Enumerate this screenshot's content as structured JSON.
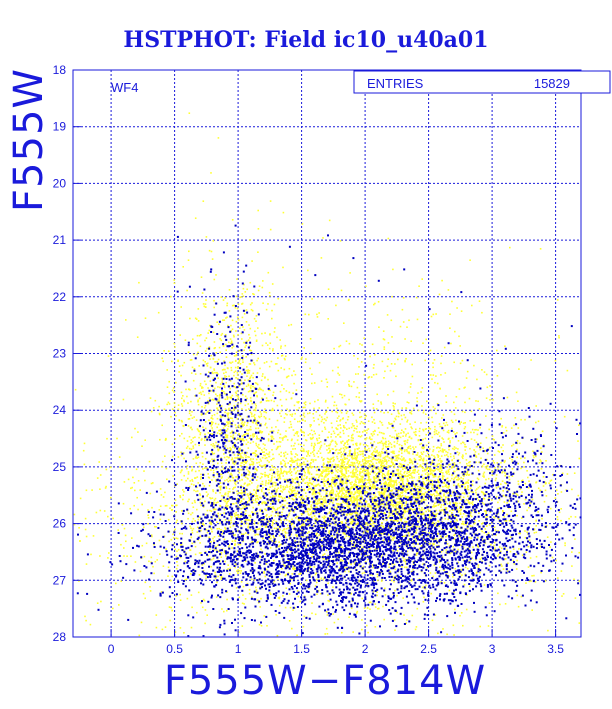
{
  "chart_data": {
    "type": "scatter",
    "title": "HSTPHOT: Field ic10_u40a01",
    "xlabel": "F555W−F814W",
    "ylabel": "F555W",
    "field_label": "WF4",
    "stats_box": {
      "label": "ENTRIES",
      "value": "15829"
    },
    "xlim": [
      -0.3,
      3.7
    ],
    "ylim": [
      18,
      28
    ],
    "y_inverted": true,
    "grid": true,
    "x_ticks": [
      "0",
      "0.5",
      "1",
      "1.5",
      "2",
      "2.5",
      "3",
      "3.5"
    ],
    "y_ticks": [
      "18",
      "19",
      "20",
      "21",
      "22",
      "23",
      "24",
      "25",
      "26",
      "27",
      "28"
    ],
    "series": [
      {
        "color": "#ffff33",
        "points": [
          [
            0.62,
            23.1
          ],
          [
            0.68,
            22.2
          ],
          [
            0.55,
            24.4
          ],
          [
            0.75,
            22.9
          ],
          [
            0.82,
            21.6
          ],
          [
            0.9,
            23.5
          ],
          [
            0.7,
            25.2
          ],
          [
            0.6,
            25.9
          ],
          [
            0.45,
            26.3
          ],
          [
            0.3,
            27.1
          ],
          [
            0.18,
            25.4
          ],
          [
            0.05,
            26.1
          ],
          [
            -0.1,
            24.9
          ],
          [
            -0.2,
            26.7
          ],
          [
            0.35,
            27.6
          ],
          [
            0.5,
            27.9
          ],
          [
            0.95,
            22.4
          ],
          [
            1.05,
            21.9
          ],
          [
            1.15,
            21.2
          ],
          [
            1.25,
            20.8
          ],
          [
            1.35,
            20.5
          ],
          [
            1.5,
            20.7
          ],
          [
            1.65,
            21.3
          ],
          [
            1.8,
            21.0
          ],
          [
            0.78,
            19.8
          ],
          [
            0.72,
            20.3
          ],
          [
            0.66,
            20.6
          ],
          [
            2.0,
            21.8
          ],
          [
            2.2,
            22.4
          ],
          [
            2.4,
            22.0
          ],
          [
            2.6,
            21.7
          ],
          [
            2.7,
            22.6
          ],
          [
            2.85,
            23.2
          ],
          [
            3.0,
            23.8
          ],
          [
            3.2,
            24.3
          ],
          [
            3.4,
            24.6
          ],
          [
            3.55,
            25.1
          ],
          [
            3.6,
            25.9
          ],
          [
            3.45,
            26.4
          ],
          [
            3.3,
            27.0
          ],
          [
            3.1,
            27.4
          ],
          [
            2.9,
            27.8
          ],
          [
            3.65,
            27.3
          ],
          [
            1.0,
            27.9
          ],
          [
            1.4,
            27.7
          ],
          [
            1.9,
            27.9
          ],
          [
            2.3,
            27.6
          ],
          [
            2.7,
            27.5
          ],
          [
            1.1,
            23.0
          ],
          [
            1.3,
            22.7
          ],
          [
            1.55,
            22.3
          ],
          [
            1.75,
            22.9
          ],
          [
            1.2,
            24.1
          ],
          [
            1.6,
            24.6
          ],
          [
            2.1,
            24.3
          ],
          [
            2.45,
            24.5
          ]
        ],
        "clusters": [
          {
            "cx": 0.95,
            "cy": 24.2,
            "sx": 0.22,
            "sy": 1.3,
            "n": 1100
          },
          {
            "cx": 2.05,
            "cy": 25.3,
            "sx": 0.45,
            "sy": 0.55,
            "n": 2600
          },
          {
            "cx": 1.55,
            "cy": 25.6,
            "sx": 0.6,
            "sy": 0.9,
            "n": 1500
          },
          {
            "cx": 2.6,
            "cy": 25.6,
            "sx": 0.5,
            "sy": 0.8,
            "n": 900
          },
          {
            "cx": 1.8,
            "cy": 23.8,
            "sx": 0.8,
            "sy": 1.1,
            "n": 500
          },
          {
            "cx": 1.5,
            "cy": 26.4,
            "sx": 1.1,
            "sy": 1.0,
            "n": 700
          }
        ]
      },
      {
        "color": "#0000c0",
        "points": [
          [
            0.78,
            21.5
          ],
          [
            0.82,
            22.1
          ],
          [
            0.88,
            21.2
          ],
          [
            0.93,
            22.6
          ],
          [
            1.02,
            23.4
          ],
          [
            1.12,
            21.8
          ],
          [
            1.4,
            21.1
          ],
          [
            1.6,
            21.6
          ],
          [
            1.7,
            20.9
          ],
          [
            1.9,
            21.3
          ],
          [
            2.1,
            21.7
          ],
          [
            2.3,
            21.5
          ],
          [
            2.5,
            22.2
          ],
          [
            2.65,
            22.8
          ],
          [
            2.8,
            23.1
          ],
          [
            2.9,
            23.6
          ],
          [
            3.05,
            24.0
          ],
          [
            3.2,
            24.4
          ],
          [
            3.35,
            24.7
          ],
          [
            3.5,
            24.3
          ],
          [
            3.62,
            22.5
          ],
          [
            3.1,
            22.9
          ],
          [
            2.75,
            21.9
          ],
          [
            0.5,
            25.3
          ],
          [
            0.3,
            26.2
          ],
          [
            0.15,
            25.8
          ],
          [
            0.4,
            27.2
          ],
          [
            0.6,
            27.6
          ],
          [
            3.6,
            26.0
          ],
          [
            3.4,
            27.0
          ],
          [
            3.3,
            26.4
          ],
          [
            3.15,
            27.3
          ],
          [
            2.95,
            27.6
          ],
          [
            0.85,
            23.9
          ],
          [
            0.75,
            24.5
          ],
          [
            1.15,
            24.8
          ],
          [
            1.45,
            23.7
          ],
          [
            2.0,
            23.2
          ],
          [
            2.4,
            23.9
          ],
          [
            2.6,
            24.3
          ],
          [
            3.0,
            25.4
          ],
          [
            3.5,
            25.6
          ]
        ],
        "clusters": [
          {
            "cx": 2.05,
            "cy": 26.3,
            "sx": 0.55,
            "sy": 0.55,
            "n": 1900
          },
          {
            "cx": 1.45,
            "cy": 26.5,
            "sx": 0.55,
            "sy": 0.5,
            "n": 1100
          },
          {
            "cx": 2.65,
            "cy": 26.1,
            "sx": 0.45,
            "sy": 0.6,
            "n": 650
          },
          {
            "cx": 0.9,
            "cy": 24.8,
            "sx": 0.15,
            "sy": 1.4,
            "n": 450
          },
          {
            "cx": 3.05,
            "cy": 25.6,
            "sx": 0.4,
            "sy": 0.7,
            "n": 350
          }
        ]
      }
    ]
  }
}
